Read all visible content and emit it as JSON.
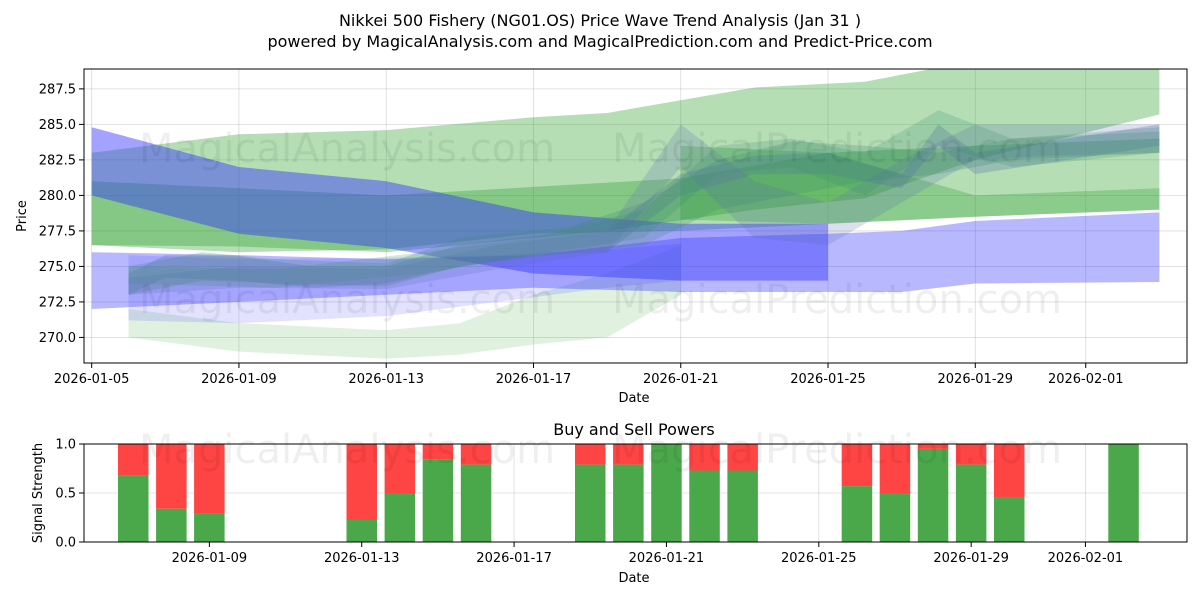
{
  "header": {
    "title": "Nikkei 500 Fishery (NG01.OS) Price Wave Trend Analysis (Jan 31 )",
    "subtitle": "powered by MagicalAnalysis.com and MagicalPrediction.com and Predict-Price.com"
  },
  "watermarks": [
    "MagicalAnalysis.com",
    "MagicalPrediction.com"
  ],
  "colors": {
    "green": "#2ca02c",
    "blue": "#3333ff",
    "buy": "#4aa84a",
    "sell": "#ff4444"
  },
  "chart_data": [
    {
      "type": "area",
      "title": "",
      "xlabel": "Date",
      "ylabel": "Price",
      "xlim": [
        "2026-01-04T19:00",
        "2026-02-03T18:00"
      ],
      "ylim": [
        268.2,
        288.9
      ],
      "xticks": [
        "2026-01-05",
        "2026-01-09",
        "2026-01-13",
        "2026-01-17",
        "2026-01-21",
        "2026-01-25",
        "2026-01-29",
        "2026-02-01"
      ],
      "yticks": [
        "270.0",
        "272.5",
        "275.0",
        "277.5",
        "280.0",
        "282.5",
        "285.0",
        "287.5"
      ],
      "grid": true,
      "series": [
        {
          "name": "green-band-upper-wide",
          "color": "green",
          "opacity": 0.35,
          "x": [
            "2026-01-05",
            "2026-01-09",
            "2026-01-13",
            "2026-01-17",
            "2026-01-19",
            "2026-01-23",
            "2026-01-26",
            "2026-01-29",
            "2026-02-03"
          ],
          "upper": [
            283.0,
            284.3,
            284.6,
            285.5,
            285.8,
            287.6,
            288.0,
            289.5,
            290.0
          ],
          "lower": [
            276.5,
            276.4,
            276.0,
            277.0,
            277.5,
            279.0,
            279.8,
            282.5,
            285.7
          ]
        },
        {
          "name": "green-band-middle",
          "color": "green",
          "opacity": 0.35,
          "x": [
            "2026-01-05",
            "2026-01-09",
            "2026-01-13",
            "2026-01-17",
            "2026-01-21",
            "2026-01-25",
            "2026-01-29",
            "2026-02-03"
          ],
          "upper": [
            281.0,
            280.5,
            280.0,
            280.6,
            281.2,
            283.0,
            283.5,
            284.0
          ],
          "lower": [
            276.5,
            276.0,
            276.2,
            277.3,
            277.5,
            278.0,
            278.5,
            279.0
          ]
        },
        {
          "name": "green-band-lower-right",
          "color": "green",
          "opacity": 0.3,
          "x": [
            "2026-01-21",
            "2026-01-25",
            "2026-01-29",
            "2026-02-03"
          ],
          "upper": [
            283.5,
            283.0,
            280.0,
            280.5
          ],
          "lower": [
            278.3,
            278.0,
            278.5,
            279.0
          ]
        },
        {
          "name": "green-band-low",
          "color": "green",
          "opacity": 0.15,
          "x": [
            "2026-01-06",
            "2026-01-09",
            "2026-01-13",
            "2026-01-15",
            "2026-01-17",
            "2026-01-19",
            "2026-01-21"
          ],
          "upper": [
            272.0,
            271.0,
            270.5,
            271.0,
            273.0,
            274.5,
            276.5
          ],
          "lower": [
            270.0,
            269.0,
            268.5,
            268.8,
            269.5,
            270.0,
            273.0
          ]
        },
        {
          "name": "blue-band-upper",
          "color": "blue",
          "opacity": 0.45,
          "x": [
            "2026-01-05",
            "2026-01-09",
            "2026-01-13",
            "2026-01-17",
            "2026-01-21",
            "2026-01-25"
          ],
          "upper": [
            284.8,
            282.0,
            281.0,
            278.8,
            278.0,
            278.0
          ],
          "lower": [
            280.0,
            277.3,
            276.3,
            274.5,
            274.0,
            274.0
          ]
        },
        {
          "name": "blue-band-lower",
          "color": "blue",
          "opacity": 0.35,
          "x": [
            "2026-01-05",
            "2026-01-09",
            "2026-01-13",
            "2026-01-17",
            "2026-01-21",
            "2026-01-25",
            "2026-01-27",
            "2026-01-29",
            "2026-02-03"
          ],
          "upper": [
            276.0,
            275.8,
            275.5,
            275.8,
            277.0,
            277.3,
            277.5,
            278.2,
            278.8
          ],
          "lower": [
            272.0,
            272.5,
            273.0,
            273.5,
            273.2,
            273.2,
            273.2,
            273.8,
            273.9
          ]
        },
        {
          "name": "blue-band-pale",
          "color": "blue",
          "opacity": 0.14,
          "x": [
            "2026-01-06",
            "2026-01-09",
            "2026-01-13",
            "2026-01-16",
            "2026-01-19",
            "2026-01-21"
          ],
          "upper": [
            275.8,
            275.5,
            275.6,
            275.8,
            276.2,
            276.6
          ],
          "lower": [
            271.2,
            271.0,
            271.5,
            272.5,
            273.5,
            274.0
          ]
        },
        {
          "name": "wave-1",
          "color": "mix",
          "opacity": 0.3,
          "x": [
            "2026-01-06",
            "2026-01-07",
            "2026-01-09",
            "2026-01-11",
            "2026-01-13",
            "2026-01-15",
            "2026-01-17",
            "2026-01-19",
            "2026-01-21",
            "2026-01-23",
            "2026-01-25",
            "2026-01-27",
            "2026-01-28",
            "2026-01-29",
            "2026-02-03"
          ],
          "upper": [
            274.5,
            275.8,
            275.7,
            275.0,
            275.0,
            276.5,
            277.2,
            277.5,
            281.5,
            282.8,
            283.0,
            281.5,
            285.0,
            283.0,
            285.0
          ],
          "lower": [
            273.0,
            274.2,
            274.0,
            273.5,
            273.8,
            275.0,
            275.8,
            276.0,
            280.0,
            281.5,
            281.5,
            280.5,
            283.5,
            281.5,
            283.5
          ]
        },
        {
          "name": "wave-2",
          "color": "mix",
          "opacity": 0.25,
          "x": [
            "2026-01-06",
            "2026-01-08",
            "2026-01-10",
            "2026-01-13",
            "2026-01-15",
            "2026-01-18",
            "2026-01-20",
            "2026-01-22",
            "2026-01-24",
            "2026-01-26",
            "2026-01-28",
            "2026-01-30",
            "2026-02-03"
          ],
          "upper": [
            275.0,
            276.0,
            275.5,
            275.2,
            277.0,
            277.8,
            279.5,
            282.5,
            283.8,
            283.5,
            283.0,
            284.0,
            284.5
          ],
          "lower": [
            273.0,
            274.0,
            273.8,
            273.6,
            275.0,
            276.0,
            276.5,
            279.0,
            280.0,
            281.0,
            281.5,
            282.5,
            283.0
          ]
        },
        {
          "name": "wave-3",
          "color": "mix",
          "opacity": 0.22,
          "x": [
            "2026-01-06",
            "2026-01-09",
            "2026-01-13",
            "2026-01-16",
            "2026-01-19",
            "2026-01-21",
            "2026-01-23",
            "2026-01-25",
            "2026-01-27",
            "2026-01-29",
            "2026-01-31",
            "2026-02-03"
          ],
          "upper": [
            274.2,
            275.0,
            274.8,
            276.5,
            277.5,
            285.0,
            281.0,
            279.5,
            282.5,
            285.0,
            285.0,
            285.0
          ],
          "lower": [
            273.0,
            273.5,
            273.4,
            274.8,
            276.0,
            282.0,
            277.0,
            276.5,
            279.5,
            282.5,
            282.8,
            283.0
          ]
        },
        {
          "name": "wave-4",
          "color": "mix",
          "opacity": 0.22,
          "x": [
            "2026-01-06",
            "2026-01-10",
            "2026-01-14",
            "2026-01-17",
            "2026-01-20",
            "2026-01-22",
            "2026-01-24",
            "2026-01-26",
            "2026-01-28",
            "2026-01-30",
            "2026-02-03"
          ],
          "upper": [
            275.0,
            274.8,
            276.0,
            277.0,
            279.0,
            283.5,
            284.0,
            283.0,
            286.0,
            284.0,
            284.8
          ],
          "lower": [
            273.8,
            273.5,
            274.5,
            275.8,
            277.0,
            281.5,
            282.0,
            280.0,
            283.5,
            282.0,
            283.0
          ]
        }
      ]
    },
    {
      "type": "bar",
      "title": "Buy and Sell Powers",
      "xlabel": "Date",
      "ylabel": "Signal Strength",
      "ylim": [
        0,
        1
      ],
      "xlim": [
        "2026-01-05T17:00",
        "2026-02-03T16:00"
      ],
      "xticks": [
        "2026-01-09",
        "2026-01-13",
        "2026-01-17",
        "2026-01-21",
        "2026-01-25",
        "2026-01-29",
        "2026-02-01"
      ],
      "yticks": [
        "0.0",
        "0.5",
        "1.0"
      ],
      "grid": true,
      "dates": [
        "2026-01-07",
        "2026-01-08",
        "2026-01-09",
        "2026-01-13",
        "2026-01-14",
        "2026-01-15",
        "2026-01-16",
        "2026-01-19",
        "2026-01-20",
        "2026-01-21",
        "2026-01-22",
        "2026-01-23",
        "2026-01-26",
        "2026-01-27",
        "2026-01-28",
        "2026-01-29",
        "2026-01-30",
        "2026-02-02"
      ],
      "series": [
        {
          "name": "Buy",
          "values": [
            0.68,
            0.34,
            0.29,
            0.23,
            0.5,
            0.84,
            0.79,
            0.79,
            0.79,
            1.0,
            0.73,
            0.73,
            0.57,
            0.5,
            0.95,
            0.79,
            0.45,
            1.0
          ]
        },
        {
          "name": "Sell",
          "values": [
            0.32,
            0.66,
            0.71,
            0.77,
            0.5,
            0.16,
            0.21,
            0.21,
            0.21,
            0.0,
            0.27,
            0.27,
            0.43,
            0.5,
            0.05,
            0.21,
            0.55,
            0.0
          ]
        }
      ]
    }
  ]
}
